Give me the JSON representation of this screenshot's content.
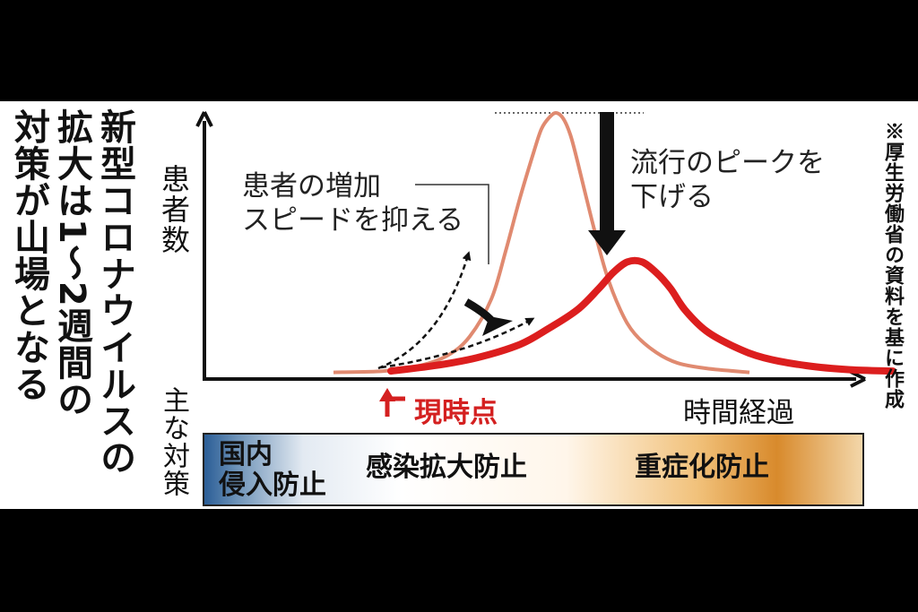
{
  "headline": {
    "lines": [
      "新型コロナウイルスの",
      "拡大は1〜2週間の",
      "対策が山場となる"
    ]
  },
  "source_note": "※厚生労働省の資料を基に作成",
  "annotations": {
    "speed": [
      "患者の増加",
      "スピードを抑える"
    ],
    "peak": [
      "流行のピークを",
      "下げる"
    ],
    "now": "現時点"
  },
  "colors": {
    "uncontrolled_curve": "#e08a70",
    "controlled_curve": "#dc1e1e",
    "now_label": "#d42020",
    "bar_left": "#2a5d96",
    "bar_right": "#d88a2c"
  },
  "measures": {
    "label": "主な対策",
    "items": [
      {
        "lines": [
          "国内",
          "侵入防止"
        ]
      },
      {
        "lines": [
          "感染拡大防止"
        ]
      },
      {
        "lines": [
          "重症化防止"
        ]
      }
    ]
  },
  "chart_data": {
    "type": "line",
    "ylabel": "患者数",
    "xlabel": "時間経過",
    "grid": false,
    "ticks": false,
    "xlim": [
      0,
      100
    ],
    "ylim": [
      0,
      100
    ],
    "note": "",
    "series": [
      {
        "style": "thin salmon line (uncontrolled)",
        "x": [
          18,
          25,
          30,
          34,
          37,
          40,
          42,
          44,
          46,
          47,
          48,
          49,
          50,
          51,
          52,
          54,
          56,
          58,
          60,
          63,
          66,
          70,
          76
        ],
        "values": [
          2.5,
          3,
          5,
          9,
          16,
          30,
          48,
          68,
          86,
          94,
          98,
          100,
          98,
          92,
          82,
          60,
          40,
          26,
          17,
          10,
          6,
          4,
          2.5
        ]
      },
      {
        "style": "thick red line (controlled)",
        "x": [
          26,
          32,
          38,
          44,
          48,
          52,
          55,
          57,
          59,
          61,
          63,
          65,
          67,
          70,
          74,
          78,
          84,
          90,
          96
        ],
        "values": [
          3,
          5,
          8,
          13,
          19,
          26,
          34,
          40,
          44,
          44,
          40,
          34,
          26,
          18,
          12,
          8,
          5,
          3.5,
          3
        ]
      }
    ]
  }
}
